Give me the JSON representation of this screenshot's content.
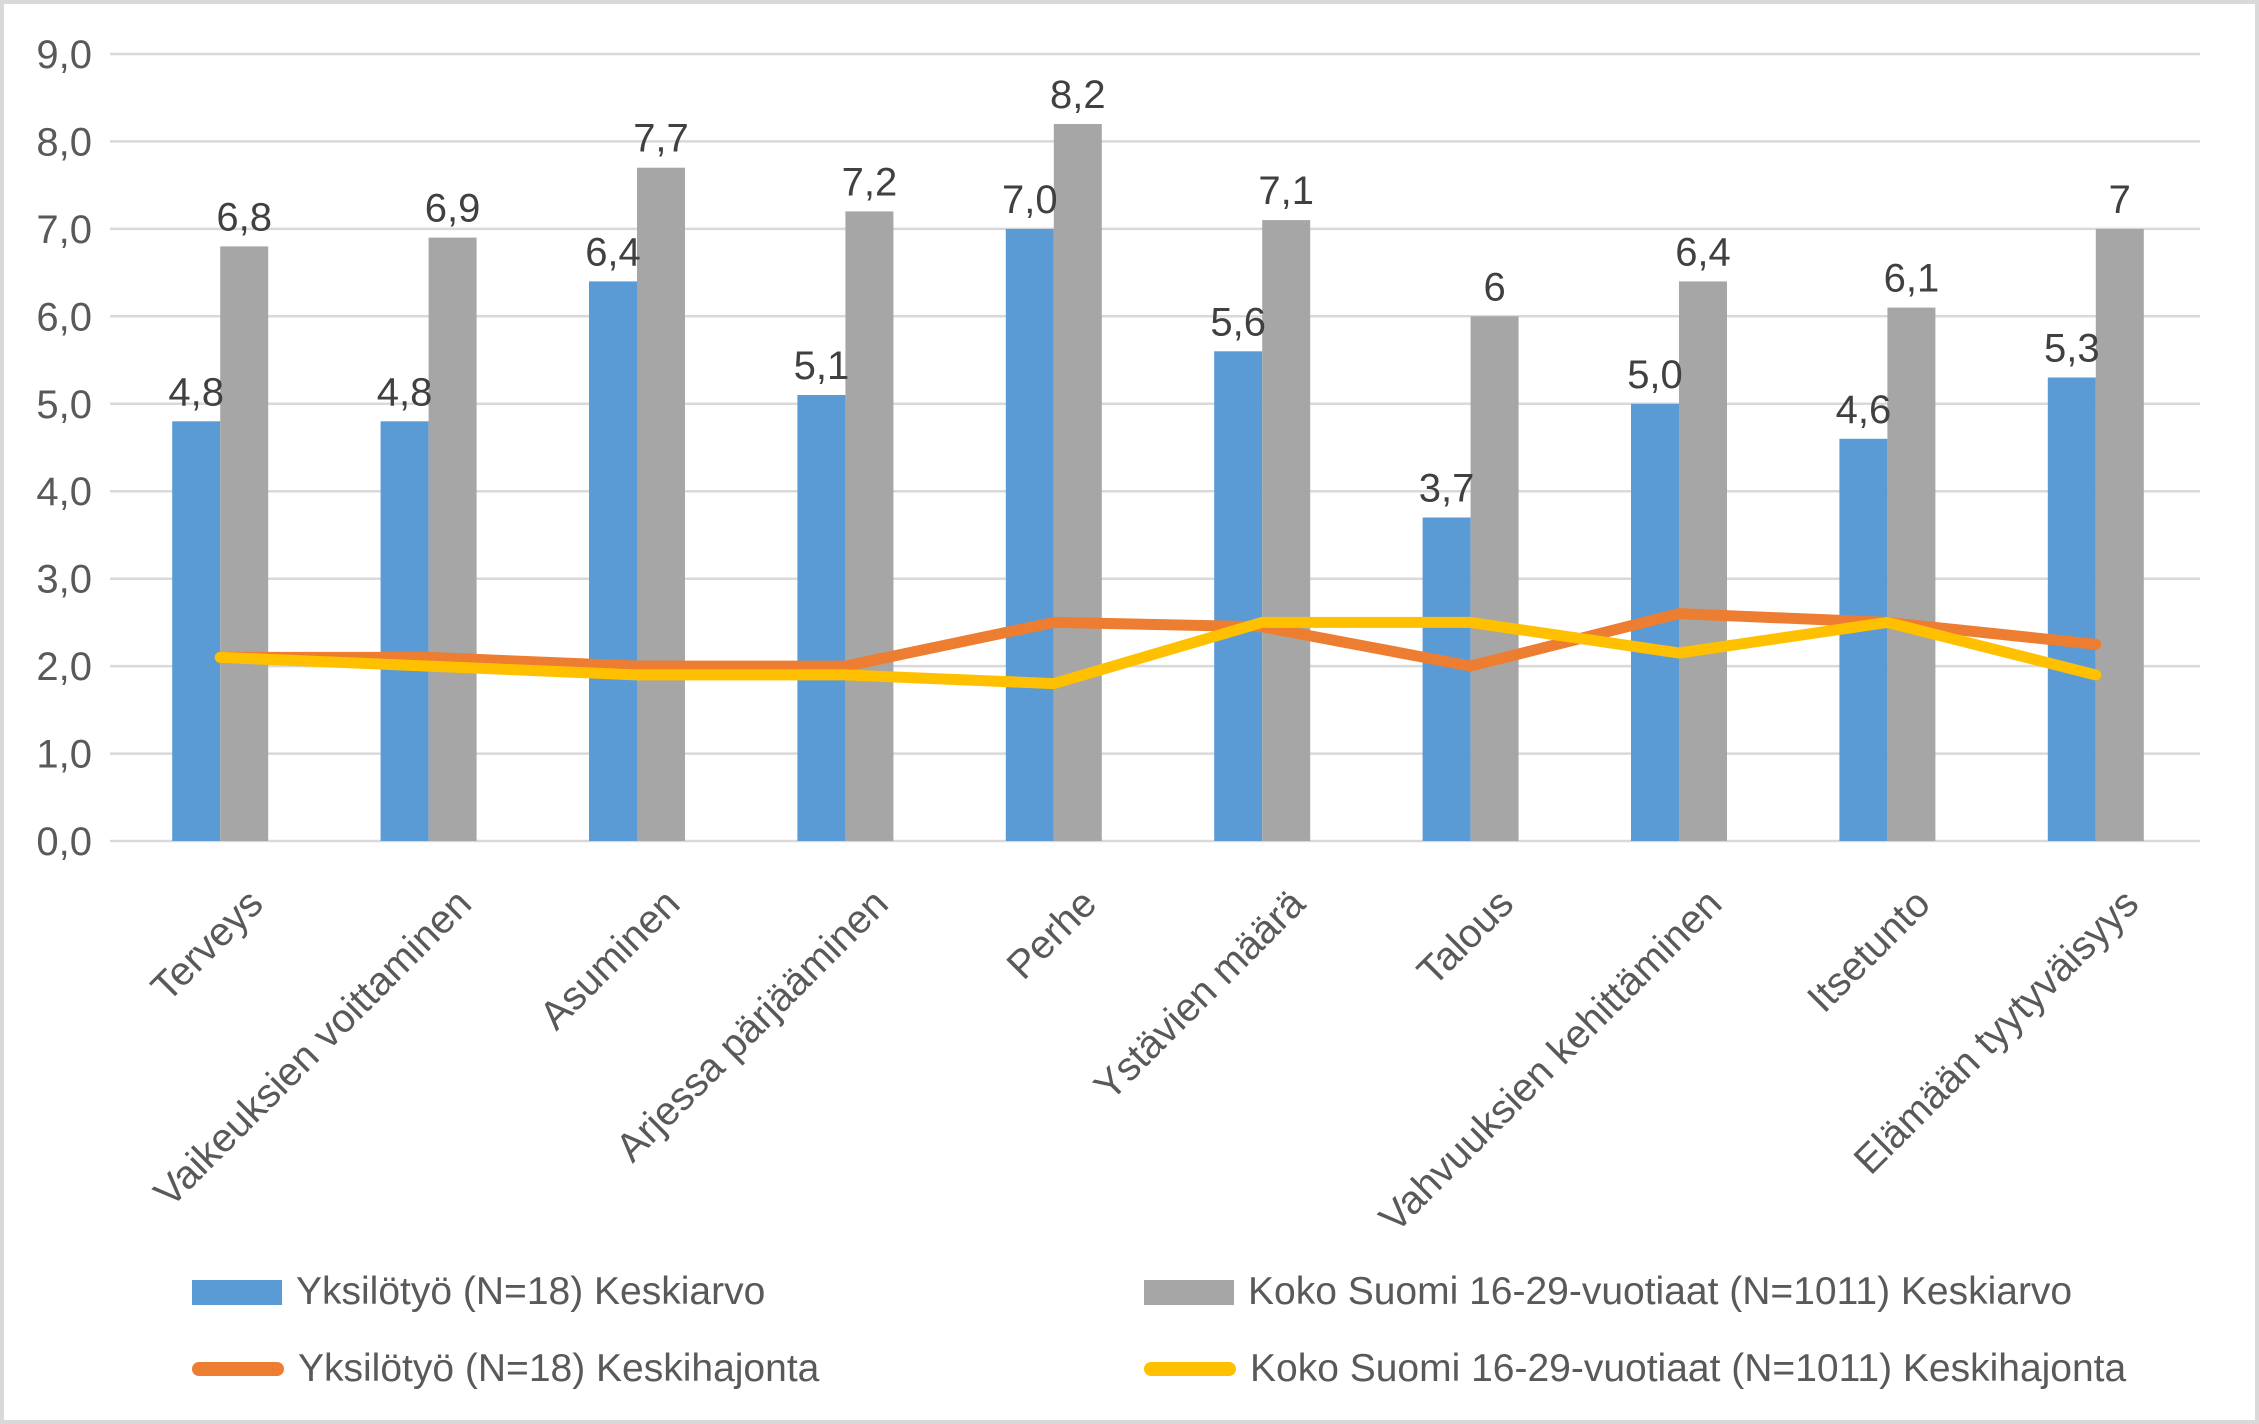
{
  "chart_data": {
    "type": "bar",
    "subtype": "grouped-bars-with-overlaid-lines",
    "title": "",
    "xlabel": "",
    "ylabel": "",
    "categories": [
      "Terveys",
      "Vaikeuksien voittaminen",
      "Asuminen",
      "Arjessa pärjääminen",
      "Perhe",
      "Ystävien määrä",
      "Talous",
      "Vahvuuksien kehittäminen",
      "Itsetunto",
      "Elämään tyytyväisyys"
    ],
    "series": [
      {
        "name": "Yksilötyö (N=18) Keskiarvo",
        "type": "bar",
        "color": "#5B9BD5",
        "values": [
          4.8,
          4.8,
          6.4,
          5.1,
          7.0,
          5.6,
          3.7,
          5.0,
          4.6,
          5.3
        ],
        "data_labels": [
          "4,8",
          "4,8",
          "6,4",
          "5,1",
          "7,0",
          "5,6",
          "3,7",
          "5,0",
          "4,6",
          "5,3"
        ]
      },
      {
        "name": "Koko Suomi 16-29-vuotiaat (N=1011) Keskiarvo",
        "type": "bar",
        "color": "#A6A6A6",
        "values": [
          6.8,
          6.9,
          7.7,
          7.2,
          8.2,
          7.1,
          6,
          6.4,
          6.1,
          7
        ],
        "data_labels": [
          "6,8",
          "6,9",
          "7,7",
          "7,2",
          "8,2",
          "7,1",
          "6",
          "6,4",
          "6,1",
          "7"
        ]
      },
      {
        "name": "Yksilötyö (N=18) Keskihajonta",
        "type": "line",
        "color": "#ED7D31",
        "values": [
          2.1,
          2.1,
          2.0,
          2.0,
          2.5,
          2.45,
          2.0,
          2.6,
          2.5,
          2.25
        ]
      },
      {
        "name": "Koko Suomi 16-29-vuotiaat (N=1011) Keskihajonta",
        "type": "line",
        "color": "#FFC000",
        "values": [
          2.1,
          2.0,
          1.9,
          1.9,
          1.8,
          2.5,
          2.5,
          2.15,
          2.5,
          1.9
        ]
      }
    ],
    "y_axis": {
      "min": 0,
      "max": 9,
      "step": 1,
      "tick_labels": [
        "0,0",
        "1,0",
        "2,0",
        "3,0",
        "4,0",
        "5,0",
        "6,0",
        "7,0",
        "8,0",
        "9,0"
      ]
    },
    "grid": true,
    "legend_position": "bottom",
    "colors": {
      "gridline": "#D9D9D9",
      "value_label": "#404040",
      "axis_label": "#595959",
      "frame_border": "#D9D9D9",
      "background": "#FFFFFF"
    }
  },
  "legend": {
    "items": [
      {
        "label": "Yksilötyö (N=18) Keskiarvo",
        "swatch": "bar",
        "color": "#5B9BD5"
      },
      {
        "label": "Koko Suomi 16-29-vuotiaat (N=1011) Keskiarvo",
        "swatch": "bar",
        "color": "#A6A6A6"
      },
      {
        "label": "Yksilötyö (N=18) Keskihajonta",
        "swatch": "line",
        "color": "#ED7D31"
      },
      {
        "label": "Koko Suomi 16-29-vuotiaat (N=1011) Keskihajonta",
        "swatch": "line",
        "color": "#FFC000"
      }
    ]
  }
}
